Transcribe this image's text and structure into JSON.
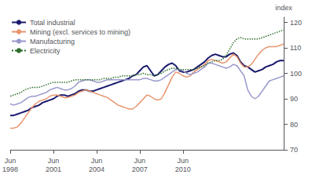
{
  "chart_data": {
    "type": "line",
    "ylabel": "index",
    "categories": [
      "Jun\n1998",
      null,
      null,
      null,
      null,
      null,
      null,
      null,
      null,
      null,
      null,
      null,
      "Jun\n2001",
      null,
      null,
      null,
      null,
      null,
      null,
      null,
      null,
      null,
      null,
      null,
      "Jun\n2004",
      null,
      null,
      null,
      null,
      null,
      null,
      null,
      null,
      null,
      null,
      null,
      "Jun\n2007",
      null,
      null,
      null,
      null,
      null,
      null,
      null,
      null,
      null,
      null,
      null,
      "Jun\n2010",
      null,
      null,
      null,
      null,
      null,
      null,
      null,
      null,
      null,
      null,
      null,
      null,
      null,
      null,
      null,
      null,
      null,
      null,
      null,
      null,
      null,
      null,
      null,
      null,
      null,
      null,
      null,
      null
    ],
    "ylim": [
      70,
      122
    ],
    "yticks": [
      70,
      80,
      90,
      100,
      110,
      120
    ],
    "grid": false,
    "legend": "upper left",
    "series": [
      {
        "name": "Total industrial",
        "color": "#1a1a6e",
        "line_style": "solid",
        "values": [
          83.5,
          83.5,
          84.0,
          84.5,
          85.0,
          85.5,
          86.5,
          87.0,
          87.5,
          88.5,
          89.0,
          89.5,
          90.0,
          91.0,
          91.5,
          91.5,
          91.0,
          91.5,
          92.0,
          93.0,
          93.5,
          93.5,
          93.0,
          93.0,
          93.5,
          94.0,
          94.5,
          95.0,
          95.5,
          96.0,
          96.5,
          97.0,
          97.5,
          98.0,
          99.0,
          99.5,
          101.0,
          102.5,
          103.0,
          101.0,
          99.0,
          99.5,
          101.0,
          102.5,
          103.5,
          104.0,
          103.0,
          101.0,
          100.5,
          100.5,
          101.0,
          101.5,
          102.5,
          103.5,
          104.5,
          106.0,
          107.0,
          107.5,
          107.0,
          106.5,
          106.5,
          107.5,
          108.0,
          107.0,
          104.5,
          103.0,
          102.5,
          101.5,
          100.5,
          101.0,
          101.5,
          102.5,
          103.0,
          103.5,
          104.5,
          105.0,
          105.0
        ]
      },
      {
        "name": "Mining (excl. services to mining)",
        "color": "#e8956d",
        "line_style": "solid",
        "values": [
          78.5,
          78.5,
          79.0,
          80.5,
          82.5,
          84.5,
          86.5,
          88.0,
          89.0,
          89.5,
          90.0,
          91.0,
          91.5,
          91.5,
          91.0,
          90.5,
          90.5,
          91.0,
          91.5,
          92.5,
          93.0,
          93.5,
          93.0,
          92.5,
          92.0,
          91.5,
          91.0,
          90.5,
          89.5,
          88.5,
          87.5,
          87.0,
          86.5,
          86.0,
          86.0,
          87.0,
          88.5,
          90.0,
          91.5,
          91.0,
          90.0,
          89.5,
          90.0,
          92.5,
          95.5,
          98.5,
          100.5,
          100.0,
          99.0,
          98.5,
          99.0,
          100.5,
          101.5,
          102.5,
          103.5,
          105.0,
          105.5,
          105.0,
          104.5,
          104.0,
          104.5,
          106.0,
          107.5,
          106.5,
          104.0,
          102.5,
          102.5,
          103.5,
          105.5,
          107.5,
          109.0,
          110.0,
          110.5,
          110.5,
          110.5,
          111.0,
          111.5
        ]
      },
      {
        "name": "Manufacturing",
        "color": "#9999cc",
        "line_style": "solid",
        "values": [
          88.0,
          87.5,
          88.0,
          88.5,
          89.5,
          90.5,
          91.0,
          91.0,
          91.5,
          92.0,
          92.5,
          93.5,
          94.0,
          94.5,
          94.0,
          93.5,
          93.5,
          94.0,
          95.0,
          96.5,
          97.0,
          97.5,
          97.5,
          97.0,
          96.5,
          96.5,
          97.0,
          97.5,
          97.5,
          97.5,
          97.5,
          97.5,
          97.5,
          97.5,
          97.5,
          97.5,
          97.5,
          98.0,
          98.0,
          97.5,
          97.0,
          97.0,
          97.5,
          98.5,
          99.5,
          100.5,
          101.5,
          101.5,
          101.0,
          100.0,
          99.5,
          100.0,
          100.5,
          101.5,
          102.5,
          104.0,
          104.0,
          103.5,
          103.0,
          102.5,
          102.0,
          102.5,
          103.5,
          103.0,
          101.0,
          99.0,
          93.5,
          91.0,
          90.0,
          91.0,
          93.0,
          95.0,
          97.0,
          97.5,
          98.0,
          98.5,
          99.0
        ]
      },
      {
        "name": "Electricity",
        "color": "#2d6e2d",
        "line_style": "dotted",
        "values": [
          91.0,
          91.5,
          92.0,
          92.5,
          93.5,
          94.0,
          94.5,
          94.5,
          94.5,
          95.0,
          95.5,
          96.0,
          96.5,
          96.5,
          96.5,
          96.5,
          96.5,
          97.0,
          97.5,
          97.5,
          97.5,
          97.5,
          97.5,
          97.5,
          97.5,
          97.5,
          98.0,
          98.0,
          98.0,
          98.5,
          98.5,
          99.0,
          99.0,
          99.0,
          99.0,
          99.5,
          99.5,
          100.0,
          99.5,
          99.5,
          99.0,
          99.5,
          100.0,
          101.0,
          101.5,
          102.0,
          102.0,
          101.5,
          101.5,
          101.5,
          101.5,
          101.5,
          102.0,
          102.5,
          103.0,
          104.0,
          104.5,
          105.0,
          105.0,
          105.5,
          107.0,
          109.5,
          112.0,
          113.5,
          114.0,
          113.5,
          113.5,
          113.5,
          113.5,
          113.5,
          114.0,
          114.5,
          115.0,
          115.5,
          116.0,
          116.5,
          117.0
        ]
      }
    ]
  }
}
